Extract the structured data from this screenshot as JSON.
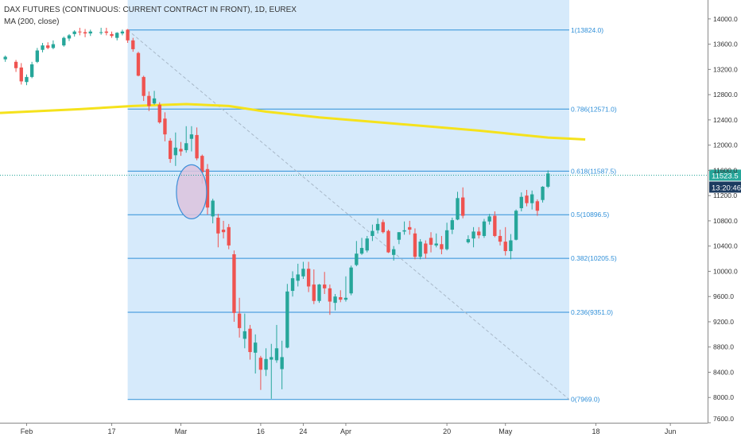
{
  "header": {
    "symbol_line": "DAX FUTURES (CONTINUOUS: CURRENT CONTRACT IN FRONT), 1D, EUREX",
    "indicator_line": "MA (200, close)"
  },
  "colors": {
    "up": "#26a69a",
    "down": "#ef5350",
    "fib_fill": "#d6eafb",
    "fib_line": "#2f8fd8",
    "ma": "#f5e21c",
    "ellipse_fill": "#dcc3dd",
    "ellipse_stroke": "#3d8fd8",
    "price_tag": "#26a69a",
    "time_tag": "#1c3b60",
    "axis_text": "#333333",
    "fib_text": "#2f8fd8"
  },
  "price_tag": {
    "price": "11523.5",
    "time": "13:20:46"
  },
  "chart_data": {
    "type": "candlestick",
    "title": "DAX FUTURES (CONTINUOUS: CURRENT CONTRACT IN FRONT), 1D, EUREX",
    "y_range": [
      7600,
      14300
    ],
    "x_range": [
      -5,
      128
    ],
    "y_ticks": [
      7600,
      8000,
      8400,
      8800,
      9200,
      9600,
      10000,
      10400,
      10800,
      11200,
      11600,
      12000,
      12400,
      12800,
      13200,
      13600,
      14000
    ],
    "y_tick_labels": [
      "7600.0",
      "8000.0",
      "8400.0",
      "8800.0",
      "9200.0",
      "9600.0",
      "10000.0",
      "10400.0",
      "10800.0",
      "11200.0",
      "11600.0",
      "12000.0",
      "12400.0",
      "12800.0",
      "13200.0",
      "13600.0",
      "14000.0"
    ],
    "x_ticks": [
      {
        "day": 0,
        "label": "Feb"
      },
      {
        "day": 16,
        "label": "17"
      },
      {
        "day": 29,
        "label": "Mar"
      },
      {
        "day": 44,
        "label": "16"
      },
      {
        "day": 52,
        "label": "24"
      },
      {
        "day": 60,
        "label": "Apr"
      },
      {
        "day": 79,
        "label": "20"
      },
      {
        "day": 90,
        "label": "May"
      },
      {
        "day": 107,
        "label": "18"
      },
      {
        "day": 121,
        "label": "Jun"
      }
    ],
    "candles": [
      {
        "d": -4,
        "o": 13360,
        "h": 13420,
        "l": 13320,
        "c": 13400
      },
      {
        "d": -2,
        "o": 13320,
        "h": 13350,
        "l": 13160,
        "c": 13220
      },
      {
        "d": -1,
        "o": 13230,
        "h": 13300,
        "l": 12960,
        "c": 13010
      },
      {
        "d": 0,
        "o": 13000,
        "h": 13120,
        "l": 12950,
        "c": 13080
      },
      {
        "d": 1,
        "o": 13080,
        "h": 13320,
        "l": 13060,
        "c": 13280
      },
      {
        "d": 2,
        "o": 13320,
        "h": 13540,
        "l": 13300,
        "c": 13500
      },
      {
        "d": 3,
        "o": 13510,
        "h": 13620,
        "l": 13470,
        "c": 13580
      },
      {
        "d": 4,
        "o": 13580,
        "h": 13630,
        "l": 13520,
        "c": 13540
      },
      {
        "d": 5,
        "o": 13540,
        "h": 13660,
        "l": 13520,
        "c": 13600
      },
      {
        "d": 7,
        "o": 13580,
        "h": 13720,
        "l": 13560,
        "c": 13700
      },
      {
        "d": 8,
        "o": 13690,
        "h": 13760,
        "l": 13650,
        "c": 13740
      },
      {
        "d": 9,
        "o": 13760,
        "h": 13820,
        "l": 13720,
        "c": 13800
      },
      {
        "d": 10,
        "o": 13800,
        "h": 13860,
        "l": 13740,
        "c": 13790
      },
      {
        "d": 11,
        "o": 13790,
        "h": 13840,
        "l": 13710,
        "c": 13770
      },
      {
        "d": 12,
        "o": 13770,
        "h": 13830,
        "l": 13730,
        "c": 13800
      },
      {
        "d": 14,
        "o": 13790,
        "h": 13860,
        "l": 13750,
        "c": 13790
      },
      {
        "d": 15,
        "o": 13800,
        "h": 13860,
        "l": 13740,
        "c": 13780
      },
      {
        "d": 16,
        "o": 13760,
        "h": 13800,
        "l": 13700,
        "c": 13730
      },
      {
        "d": 17,
        "o": 13700,
        "h": 13790,
        "l": 13660,
        "c": 13780
      },
      {
        "d": 18,
        "o": 13770,
        "h": 13830,
        "l": 13740,
        "c": 13800
      },
      {
        "d": 19,
        "o": 13830,
        "h": 13840,
        "l": 13620,
        "c": 13660
      },
      {
        "d": 20,
        "o": 13660,
        "h": 13700,
        "l": 13480,
        "c": 13520
      },
      {
        "d": 21,
        "o": 13460,
        "h": 13480,
        "l": 13090,
        "c": 13100
      },
      {
        "d": 22,
        "o": 13080,
        "h": 13100,
        "l": 12700,
        "c": 12780
      },
      {
        "d": 23,
        "o": 12780,
        "h": 12850,
        "l": 12540,
        "c": 12620
      },
      {
        "d": 24,
        "o": 12660,
        "h": 12860,
        "l": 12640,
        "c": 12740
      },
      {
        "d": 25,
        "o": 12640,
        "h": 12680,
        "l": 12340,
        "c": 12360
      },
      {
        "d": 26,
        "o": 12420,
        "h": 12520,
        "l": 12060,
        "c": 12170
      },
      {
        "d": 27,
        "o": 12070,
        "h": 12110,
        "l": 11720,
        "c": 11780
      },
      {
        "d": 28,
        "o": 11840,
        "h": 12200,
        "l": 11670,
        "c": 11960
      },
      {
        "d": 29,
        "o": 11940,
        "h": 12050,
        "l": 11830,
        "c": 11900
      },
      {
        "d": 30,
        "o": 11920,
        "h": 12300,
        "l": 11880,
        "c": 12030
      },
      {
        "d": 31,
        "o": 12100,
        "h": 12300,
        "l": 11900,
        "c": 12170
      },
      {
        "d": 32,
        "o": 12160,
        "h": 12280,
        "l": 11760,
        "c": 11790
      },
      {
        "d": 33,
        "o": 11830,
        "h": 11850,
        "l": 11390,
        "c": 11570
      },
      {
        "d": 34,
        "o": 11620,
        "h": 11700,
        "l": 10900,
        "c": 11010
      },
      {
        "d": 35,
        "o": 10870,
        "h": 11150,
        "l": 10760,
        "c": 11120
      },
      {
        "d": 36,
        "o": 10850,
        "h": 10910,
        "l": 10380,
        "c": 10600
      },
      {
        "d": 37,
        "o": 10660,
        "h": 10800,
        "l": 10520,
        "c": 10620
      },
      {
        "d": 38,
        "o": 10700,
        "h": 10750,
        "l": 10350,
        "c": 10410
      },
      {
        "d": 39,
        "o": 10270,
        "h": 10330,
        "l": 9200,
        "c": 9340
      },
      {
        "d": 40,
        "o": 9330,
        "h": 9580,
        "l": 8950,
        "c": 9100
      },
      {
        "d": 41,
        "o": 8930,
        "h": 9330,
        "l": 8780,
        "c": 9050
      },
      {
        "d": 42,
        "o": 9090,
        "h": 9150,
        "l": 8600,
        "c": 8720
      },
      {
        "d": 43,
        "o": 8710,
        "h": 9000,
        "l": 8380,
        "c": 8870
      },
      {
        "d": 44,
        "o": 8630,
        "h": 8660,
        "l": 8120,
        "c": 8440
      },
      {
        "d": 45,
        "o": 8440,
        "h": 8780,
        "l": 8340,
        "c": 8610
      },
      {
        "d": 46,
        "o": 8600,
        "h": 8850,
        "l": 7980,
        "c": 8640
      },
      {
        "d": 47,
        "o": 8590,
        "h": 9150,
        "l": 8550,
        "c": 8780
      },
      {
        "d": 48,
        "o": 8450,
        "h": 8900,
        "l": 8130,
        "c": 8640
      },
      {
        "d": 49,
        "o": 8790,
        "h": 9800,
        "l": 8780,
        "c": 9680
      },
      {
        "d": 50,
        "o": 9690,
        "h": 10000,
        "l": 9600,
        "c": 9890
      },
      {
        "d": 51,
        "o": 9850,
        "h": 10120,
        "l": 9760,
        "c": 9950
      },
      {
        "d": 52,
        "o": 9920,
        "h": 10150,
        "l": 9880,
        "c": 10040
      },
      {
        "d": 53,
        "o": 10040,
        "h": 10150,
        "l": 9670,
        "c": 9760
      },
      {
        "d": 54,
        "o": 9790,
        "h": 10030,
        "l": 9480,
        "c": 9530
      },
      {
        "d": 55,
        "o": 9530,
        "h": 9800,
        "l": 9500,
        "c": 9790
      },
      {
        "d": 56,
        "o": 9790,
        "h": 9990,
        "l": 9640,
        "c": 9730
      },
      {
        "d": 57,
        "o": 9730,
        "h": 9790,
        "l": 9310,
        "c": 9520
      },
      {
        "d": 58,
        "o": 9500,
        "h": 9640,
        "l": 9380,
        "c": 9600
      },
      {
        "d": 59,
        "o": 9590,
        "h": 9700,
        "l": 9510,
        "c": 9550
      },
      {
        "d": 60,
        "o": 9550,
        "h": 9920,
        "l": 9520,
        "c": 9580
      },
      {
        "d": 61,
        "o": 9650,
        "h": 10090,
        "l": 9620,
        "c": 10060
      },
      {
        "d": 62,
        "o": 10100,
        "h": 10480,
        "l": 10080,
        "c": 10280
      },
      {
        "d": 63,
        "o": 10280,
        "h": 10530,
        "l": 10260,
        "c": 10370
      },
      {
        "d": 64,
        "o": 10330,
        "h": 10560,
        "l": 10300,
        "c": 10520
      },
      {
        "d": 65,
        "o": 10560,
        "h": 10740,
        "l": 10480,
        "c": 10640
      },
      {
        "d": 66,
        "o": 10650,
        "h": 10840,
        "l": 10600,
        "c": 10750
      },
      {
        "d": 67,
        "o": 10780,
        "h": 10820,
        "l": 10600,
        "c": 10620
      },
      {
        "d": 68,
        "o": 10640,
        "h": 10660,
        "l": 10290,
        "c": 10300
      },
      {
        "d": 69,
        "o": 10260,
        "h": 10400,
        "l": 10170,
        "c": 10350
      },
      {
        "d": 70,
        "o": 10500,
        "h": 10620,
        "l": 10430,
        "c": 10620
      },
      {
        "d": 71,
        "o": 10630,
        "h": 10790,
        "l": 10580,
        "c": 10650
      },
      {
        "d": 72,
        "o": 10700,
        "h": 10800,
        "l": 10580,
        "c": 10660
      },
      {
        "d": 73,
        "o": 10600,
        "h": 10680,
        "l": 10190,
        "c": 10230
      },
      {
        "d": 74,
        "o": 10230,
        "h": 10510,
        "l": 10190,
        "c": 10470
      },
      {
        "d": 75,
        "o": 10440,
        "h": 10490,
        "l": 10200,
        "c": 10280
      },
      {
        "d": 76,
        "o": 10530,
        "h": 10620,
        "l": 10300,
        "c": 10420
      },
      {
        "d": 77,
        "o": 10410,
        "h": 10600,
        "l": 10380,
        "c": 10440
      },
      {
        "d": 78,
        "o": 10430,
        "h": 10560,
        "l": 10270,
        "c": 10350
      },
      {
        "d": 79,
        "o": 10350,
        "h": 10770,
        "l": 10330,
        "c": 10650
      },
      {
        "d": 80,
        "o": 10660,
        "h": 10850,
        "l": 10590,
        "c": 10810
      },
      {
        "d": 81,
        "o": 10820,
        "h": 11260,
        "l": 10810,
        "c": 11160
      },
      {
        "d": 82,
        "o": 11170,
        "h": 11330,
        "l": 10840,
        "c": 10880
      },
      {
        "d": 83,
        "o": 10460,
        "h": 10570,
        "l": 10440,
        "c": 10510
      },
      {
        "d": 84,
        "o": 10520,
        "h": 10700,
        "l": 10380,
        "c": 10630
      },
      {
        "d": 85,
        "o": 10630,
        "h": 10700,
        "l": 10520,
        "c": 10570
      },
      {
        "d": 86,
        "o": 10560,
        "h": 10830,
        "l": 10530,
        "c": 10790
      },
      {
        "d": 87,
        "o": 10790,
        "h": 10910,
        "l": 10740,
        "c": 10870
      },
      {
        "d": 88,
        "o": 10880,
        "h": 10950,
        "l": 10540,
        "c": 10560
      },
      {
        "d": 89,
        "o": 10560,
        "h": 10660,
        "l": 10410,
        "c": 10470
      },
      {
        "d": 90,
        "o": 10470,
        "h": 10700,
        "l": 10250,
        "c": 10320
      },
      {
        "d": 91,
        "o": 10320,
        "h": 10590,
        "l": 10190,
        "c": 10490
      },
      {
        "d": 92,
        "o": 10500,
        "h": 10980,
        "l": 10490,
        "c": 10960
      },
      {
        "d": 93,
        "o": 11000,
        "h": 11250,
        "l": 10950,
        "c": 11180
      },
      {
        "d": 94,
        "o": 11200,
        "h": 11290,
        "l": 11030,
        "c": 11080
      },
      {
        "d": 95,
        "o": 11080,
        "h": 11280,
        "l": 10980,
        "c": 11220
      },
      {
        "d": 96,
        "o": 11110,
        "h": 11140,
        "l": 10880,
        "c": 10960
      },
      {
        "d": 97,
        "o": 11130,
        "h": 11350,
        "l": 11090,
        "c": 11340
      },
      {
        "d": 98,
        "o": 11340,
        "h": 11600,
        "l": 11320,
        "c": 11550
      }
    ],
    "ma_200": [
      {
        "d": -5,
        "v": 12510
      },
      {
        "d": 10,
        "v": 12570
      },
      {
        "d": 20,
        "v": 12620
      },
      {
        "d": 30,
        "v": 12650
      },
      {
        "d": 38,
        "v": 12620
      },
      {
        "d": 45,
        "v": 12530
      },
      {
        "d": 55,
        "v": 12440
      },
      {
        "d": 65,
        "v": 12370
      },
      {
        "d": 75,
        "v": 12300
      },
      {
        "d": 85,
        "v": 12230
      },
      {
        "d": 92,
        "v": 12170
      },
      {
        "d": 98,
        "v": 12120
      },
      {
        "d": 105,
        "v": 12090
      }
    ],
    "fibonacci": {
      "start_day": 19,
      "end_day": 102,
      "levels": [
        {
          "ratio": "1",
          "price": 13824.0,
          "label": "1(13824.0)"
        },
        {
          "ratio": "0.786",
          "price": 12571.0,
          "label": "0.786(12571.0)"
        },
        {
          "ratio": "0.618",
          "price": 11587.5,
          "label": "0.618(11587.5)"
        },
        {
          "ratio": "0.5",
          "price": 10896.5,
          "label": "0.5(10896.5)"
        },
        {
          "ratio": "0.382",
          "price": 10205.5,
          "label": "0.382(10205.5)"
        },
        {
          "ratio": "0.236",
          "price": 9351.0,
          "label": "0.236(9351.0)"
        },
        {
          "ratio": "0",
          "price": 7969.0,
          "label": "0(7969.0)"
        }
      ]
    },
    "last_price": 11523.5,
    "highlight_ellipse": {
      "day": 31,
      "price": 11260
    }
  }
}
